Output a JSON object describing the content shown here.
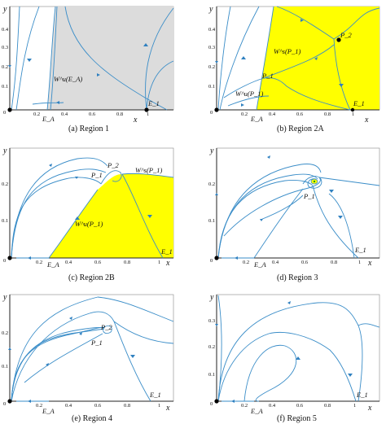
{
  "panels": [
    {
      "caption": "(a) Region 1",
      "y_axis": "y",
      "x_axis": "x",
      "y_ticks": [
        "0.4",
        "0.3",
        "0.2",
        "0.1",
        "0"
      ],
      "x_ticks": [
        "0.2",
        "0.4",
        "0.6",
        "0.8",
        "1"
      ],
      "labels": [
        "W^u(E_A)",
        "E_A",
        "E_1"
      ],
      "region_fill": "#dcdcdc"
    },
    {
      "caption": "(b) Region 2A",
      "y_axis": "y",
      "x_axis": "x",
      "y_ticks": [
        "0.4",
        "0.3",
        "0.2",
        "0.1",
        "0"
      ],
      "x_ticks": [
        "0.2",
        "0.4",
        "0.6",
        "0.8",
        "1"
      ],
      "labels": [
        "W^s(P_1)",
        "W^u(P_1)",
        "P_1",
        "P_2",
        "E_A",
        "E_1"
      ],
      "region_fill": "#ffff00"
    },
    {
      "caption": "(c) Region 2B",
      "y_axis": "y",
      "x_axis": "x",
      "y_ticks": [
        "0.2",
        "0.1",
        "0"
      ],
      "x_ticks": [
        "0.2",
        "0.4",
        "0.6",
        "0.8",
        "1"
      ],
      "labels": [
        "P_2",
        "P_1",
        "W^s(P_1)",
        "W^u(P_1)",
        "E_A",
        "E_1"
      ],
      "region_fill": "#ffff00"
    },
    {
      "caption": "(d) Region 3",
      "y_axis": "y",
      "x_axis": "x",
      "y_ticks": [
        "0.2",
        "0.1",
        "0"
      ],
      "x_ticks": [
        "0.2",
        "0.4",
        "0.6",
        "0.8",
        "1"
      ],
      "labels": [
        "P_1",
        "E_A",
        "E_1"
      ],
      "region_fill": "#ffff00"
    },
    {
      "caption": "(e) Region 4",
      "y_axis": "y",
      "x_axis": "x",
      "y_ticks": [
        "0.2",
        "0.1",
        "0"
      ],
      "x_ticks": [
        "0.2",
        "0.4",
        "0.6",
        "0.8",
        "1"
      ],
      "labels": [
        "P_2",
        "P_1",
        "E_A",
        "E_1"
      ],
      "region_fill": ""
    },
    {
      "caption": "(f) Region 5",
      "y_axis": "y",
      "x_axis": "x",
      "y_ticks": [
        "0.3",
        "0.2",
        "0.1",
        "0"
      ],
      "x_ticks": [
        "0.2",
        "0.4",
        "0.6",
        "0.8",
        "1"
      ],
      "labels": [
        "E_A",
        "E_1"
      ],
      "region_fill": ""
    }
  ],
  "colors": {
    "trajectory": "#3a8dc8",
    "arrow": "#2f80c0",
    "axis": "#222222",
    "equilibrium": "#000000"
  }
}
